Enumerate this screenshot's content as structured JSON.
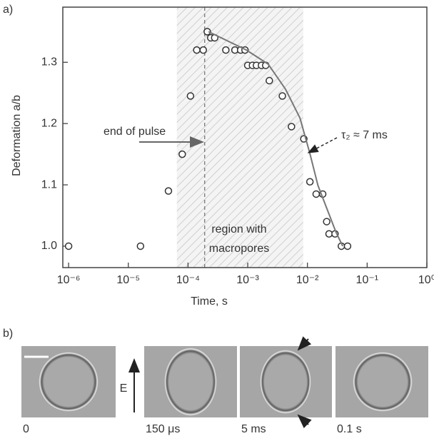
{
  "chart_data": {
    "type": "scatter",
    "panel_label": "a)",
    "xlabel": "Time, s",
    "ylabel": "Deformation a/b",
    "xscale": "log",
    "xlim": [
      8e-07,
      1
    ],
    "ylim": [
      0.965,
      1.39
    ],
    "xticks": [
      {
        "value": 1e-06,
        "label": "10⁻⁶"
      },
      {
        "value": 1e-05,
        "label": "10⁻⁵"
      },
      {
        "value": 0.0001,
        "label": "10⁻⁴"
      },
      {
        "value": 0.001,
        "label": "10⁻³"
      },
      {
        "value": 0.01,
        "label": "10⁻²"
      },
      {
        "value": 0.1,
        "label": "10⁻¹"
      },
      {
        "value": 1,
        "label": "10⁰"
      }
    ],
    "yticks": [
      {
        "value": 1,
        "label": "1.0"
      },
      1.1,
      1.2,
      1.3
    ],
    "shaded_region": [
      6.5e-05,
      0.0085
    ],
    "vline": 0.00019,
    "annotations": {
      "pulse": "end of pulse",
      "tau": "τ₂ ≈ 7 ms",
      "region": [
        "region with",
        "macropores"
      ]
    },
    "series": [
      {
        "type": "scatter",
        "color": "#333333",
        "x": [
          1e-06,
          1.6e-05,
          4.7e-05,
          8e-05,
          0.00011,
          0.00014,
          0.00018,
          0.00021,
          0.00024,
          0.00028,
          0.00043,
          0.00061,
          0.00076,
          0.0009,
          0.001,
          0.0012,
          0.0014,
          0.0017,
          0.002,
          0.0023,
          0.0038,
          0.0054,
          0.0087,
          0.011,
          0.014,
          0.018,
          0.021,
          0.023,
          0.029,
          0.037,
          0.047
        ],
        "values": [
          1.0,
          1.0,
          1.09,
          1.15,
          1.245,
          1.32,
          1.32,
          1.35,
          1.34,
          1.34,
          1.32,
          1.32,
          1.32,
          1.32,
          1.295,
          1.295,
          1.295,
          1.295,
          1.295,
          1.27,
          1.245,
          1.195,
          1.175,
          1.105,
          1.085,
          1.085,
          1.04,
          1.02,
          1.02,
          1.0,
          1.0
        ]
      },
      {
        "type": "line",
        "color": "#777777",
        "x": [
          0.00022,
          0.00095,
          0.0022,
          0.0043,
          0.0075,
          0.011,
          0.015,
          0.03,
          0.039
        ],
        "values": [
          1.35,
          1.32,
          1.297,
          1.256,
          1.209,
          1.151,
          1.099,
          1.023,
          1.0
        ]
      }
    ]
  },
  "panel_b": {
    "label": "b)",
    "field_label": "E",
    "frames": [
      {
        "caption": "0"
      },
      {
        "caption": "150 μs"
      },
      {
        "caption": "5 ms"
      },
      {
        "caption": "0.1 s"
      }
    ]
  }
}
